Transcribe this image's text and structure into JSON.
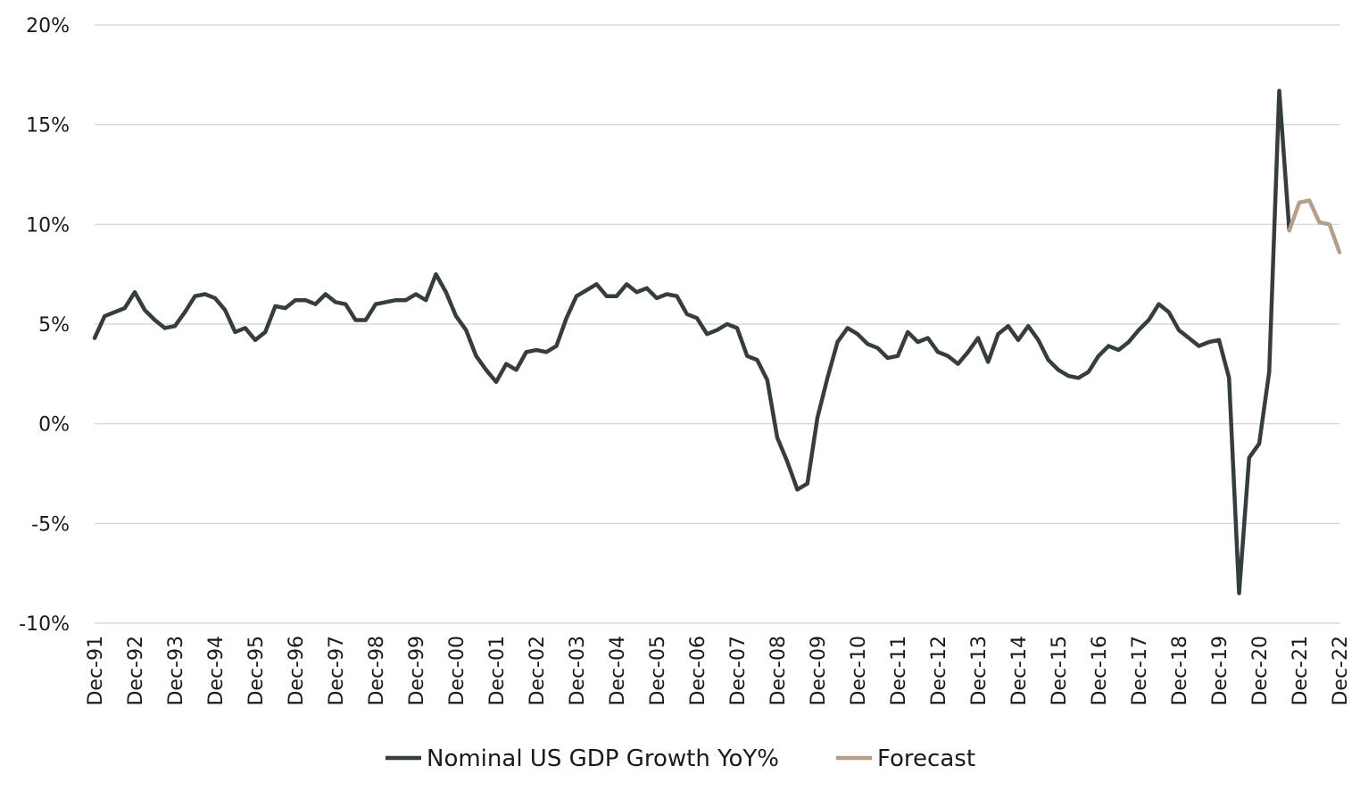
{
  "chart_data": {
    "type": "line",
    "title": "",
    "xlabel": "",
    "ylabel": "",
    "ylim": [
      -10,
      20
    ],
    "y_ticks": [
      {
        "value": 20,
        "label": "20%"
      },
      {
        "value": 15,
        "label": "15%"
      },
      {
        "value": 10,
        "label": "10%"
      },
      {
        "value": 5,
        "label": "5%"
      },
      {
        "value": 0,
        "label": "0%"
      },
      {
        "value": -5,
        "label": "-5%"
      },
      {
        "value": -10,
        "label": "-10%"
      }
    ],
    "x_ticks": [
      {
        "x": "1991-12",
        "label": "Dec-91"
      },
      {
        "x": "1992-12",
        "label": "Dec-92"
      },
      {
        "x": "1993-12",
        "label": "Dec-93"
      },
      {
        "x": "1994-12",
        "label": "Dec-94"
      },
      {
        "x": "1995-12",
        "label": "Dec-95"
      },
      {
        "x": "1996-12",
        "label": "Dec-96"
      },
      {
        "x": "1997-12",
        "label": "Dec-97"
      },
      {
        "x": "1998-12",
        "label": "Dec-98"
      },
      {
        "x": "1999-12",
        "label": "Dec-99"
      },
      {
        "x": "2000-12",
        "label": "Dec-00"
      },
      {
        "x": "2001-12",
        "label": "Dec-01"
      },
      {
        "x": "2002-12",
        "label": "Dec-02"
      },
      {
        "x": "2003-12",
        "label": "Dec-03"
      },
      {
        "x": "2004-12",
        "label": "Dec-04"
      },
      {
        "x": "2005-12",
        "label": "Dec-05"
      },
      {
        "x": "2006-12",
        "label": "Dec-06"
      },
      {
        "x": "2007-12",
        "label": "Dec-07"
      },
      {
        "x": "2008-12",
        "label": "Dec-08"
      },
      {
        "x": "2009-12",
        "label": "Dec-09"
      },
      {
        "x": "2010-12",
        "label": "Dec-10"
      },
      {
        "x": "2011-12",
        "label": "Dec-11"
      },
      {
        "x": "2012-12",
        "label": "Dec-12"
      },
      {
        "x": "2013-12",
        "label": "Dec-13"
      },
      {
        "x": "2014-12",
        "label": "Dec-14"
      },
      {
        "x": "2015-12",
        "label": "Dec-15"
      },
      {
        "x": "2016-12",
        "label": "Dec-16"
      },
      {
        "x": "2017-12",
        "label": "Dec-17"
      },
      {
        "x": "2018-12",
        "label": "Dec-18"
      },
      {
        "x": "2019-12",
        "label": "Dec-19"
      },
      {
        "x": "2020-12",
        "label": "Dec-20"
      },
      {
        "x": "2021-12",
        "label": "Dec-21"
      },
      {
        "x": "2022-12",
        "label": "Dec-22"
      }
    ],
    "grid": true,
    "legend_position": "bottom-center",
    "series": [
      {
        "name": "Nominal US GDP Growth YoY%",
        "color": "#363d3f",
        "points": [
          [
            "1991-12",
            4.3
          ],
          [
            "1992-03",
            5.4
          ],
          [
            "1992-06",
            5.6
          ],
          [
            "1992-09",
            5.8
          ],
          [
            "1992-12",
            6.6
          ],
          [
            "1993-03",
            5.7
          ],
          [
            "1993-06",
            5.2
          ],
          [
            "1993-09",
            4.8
          ],
          [
            "1993-12",
            4.9
          ],
          [
            "1994-03",
            5.6
          ],
          [
            "1994-06",
            6.4
          ],
          [
            "1994-09",
            6.5
          ],
          [
            "1994-12",
            6.3
          ],
          [
            "1995-03",
            5.7
          ],
          [
            "1995-06",
            4.6
          ],
          [
            "1995-09",
            4.8
          ],
          [
            "1995-12",
            4.2
          ],
          [
            "1996-03",
            4.6
          ],
          [
            "1996-06",
            5.9
          ],
          [
            "1996-09",
            5.8
          ],
          [
            "1996-12",
            6.2
          ],
          [
            "1997-03",
            6.2
          ],
          [
            "1997-06",
            6.0
          ],
          [
            "1997-09",
            6.5
          ],
          [
            "1997-12",
            6.1
          ],
          [
            "1998-03",
            6.0
          ],
          [
            "1998-06",
            5.2
          ],
          [
            "1998-09",
            5.2
          ],
          [
            "1998-12",
            6.0
          ],
          [
            "1999-03",
            6.1
          ],
          [
            "1999-06",
            6.2
          ],
          [
            "1999-09",
            6.2
          ],
          [
            "1999-12",
            6.5
          ],
          [
            "2000-03",
            6.2
          ],
          [
            "2000-06",
            7.5
          ],
          [
            "2000-09",
            6.6
          ],
          [
            "2000-12",
            5.4
          ],
          [
            "2001-03",
            4.7
          ],
          [
            "2001-06",
            3.4
          ],
          [
            "2001-09",
            2.7
          ],
          [
            "2001-12",
            2.1
          ],
          [
            "2002-03",
            3.0
          ],
          [
            "2002-06",
            2.7
          ],
          [
            "2002-09",
            3.6
          ],
          [
            "2002-12",
            3.7
          ],
          [
            "2003-03",
            3.6
          ],
          [
            "2003-06",
            3.9
          ],
          [
            "2003-09",
            5.3
          ],
          [
            "2003-12",
            6.4
          ],
          [
            "2004-03",
            6.7
          ],
          [
            "2004-06",
            7.0
          ],
          [
            "2004-09",
            6.4
          ],
          [
            "2004-12",
            6.4
          ],
          [
            "2005-03",
            7.0
          ],
          [
            "2005-06",
            6.6
          ],
          [
            "2005-09",
            6.8
          ],
          [
            "2005-12",
            6.3
          ],
          [
            "2006-03",
            6.5
          ],
          [
            "2006-06",
            6.4
          ],
          [
            "2006-09",
            5.5
          ],
          [
            "2006-12",
            5.3
          ],
          [
            "2007-03",
            4.5
          ],
          [
            "2007-06",
            4.7
          ],
          [
            "2007-09",
            5.0
          ],
          [
            "2007-12",
            4.8
          ],
          [
            "2008-03",
            3.4
          ],
          [
            "2008-06",
            3.2
          ],
          [
            "2008-09",
            2.2
          ],
          [
            "2008-12",
            -0.7
          ],
          [
            "2009-03",
            -1.9
          ],
          [
            "2009-06",
            -3.3
          ],
          [
            "2009-09",
            -3.0
          ],
          [
            "2009-12",
            0.3
          ],
          [
            "2010-03",
            2.3
          ],
          [
            "2010-06",
            4.1
          ],
          [
            "2010-09",
            4.8
          ],
          [
            "2010-12",
            4.5
          ],
          [
            "2011-03",
            4.0
          ],
          [
            "2011-06",
            3.8
          ],
          [
            "2011-09",
            3.3
          ],
          [
            "2011-12",
            3.4
          ],
          [
            "2012-03",
            4.6
          ],
          [
            "2012-06",
            4.1
          ],
          [
            "2012-09",
            4.3
          ],
          [
            "2012-12",
            3.6
          ],
          [
            "2013-03",
            3.4
          ],
          [
            "2013-06",
            3.0
          ],
          [
            "2013-09",
            3.6
          ],
          [
            "2013-12",
            4.3
          ],
          [
            "2014-03",
            3.1
          ],
          [
            "2014-06",
            4.5
          ],
          [
            "2014-09",
            4.9
          ],
          [
            "2014-12",
            4.2
          ],
          [
            "2015-03",
            4.9
          ],
          [
            "2015-06",
            4.2
          ],
          [
            "2015-09",
            3.2
          ],
          [
            "2015-12",
            2.7
          ],
          [
            "2016-03",
            2.4
          ],
          [
            "2016-06",
            2.3
          ],
          [
            "2016-09",
            2.6
          ],
          [
            "2016-12",
            3.4
          ],
          [
            "2017-03",
            3.9
          ],
          [
            "2017-06",
            3.7
          ],
          [
            "2017-09",
            4.1
          ],
          [
            "2017-12",
            4.7
          ],
          [
            "2018-03",
            5.2
          ],
          [
            "2018-06",
            6.0
          ],
          [
            "2018-09",
            5.6
          ],
          [
            "2018-12",
            4.7
          ],
          [
            "2019-03",
            4.3
          ],
          [
            "2019-06",
            3.9
          ],
          [
            "2019-09",
            4.1
          ],
          [
            "2019-12",
            4.2
          ],
          [
            "2020-03",
            2.3
          ],
          [
            "2020-06",
            -8.5
          ],
          [
            "2020-09",
            -1.7
          ],
          [
            "2020-12",
            -1.0
          ],
          [
            "2021-03",
            2.6
          ],
          [
            "2021-06",
            16.7
          ],
          [
            "2021-09",
            9.7
          ]
        ]
      },
      {
        "name": "Forecast",
        "color": "#b59f8a",
        "points": [
          [
            "2021-09",
            9.7
          ],
          [
            "2021-12",
            11.1
          ],
          [
            "2022-03",
            11.2
          ],
          [
            "2022-06",
            10.1
          ],
          [
            "2022-09",
            10.0
          ],
          [
            "2022-12",
            8.6
          ]
        ]
      }
    ]
  }
}
